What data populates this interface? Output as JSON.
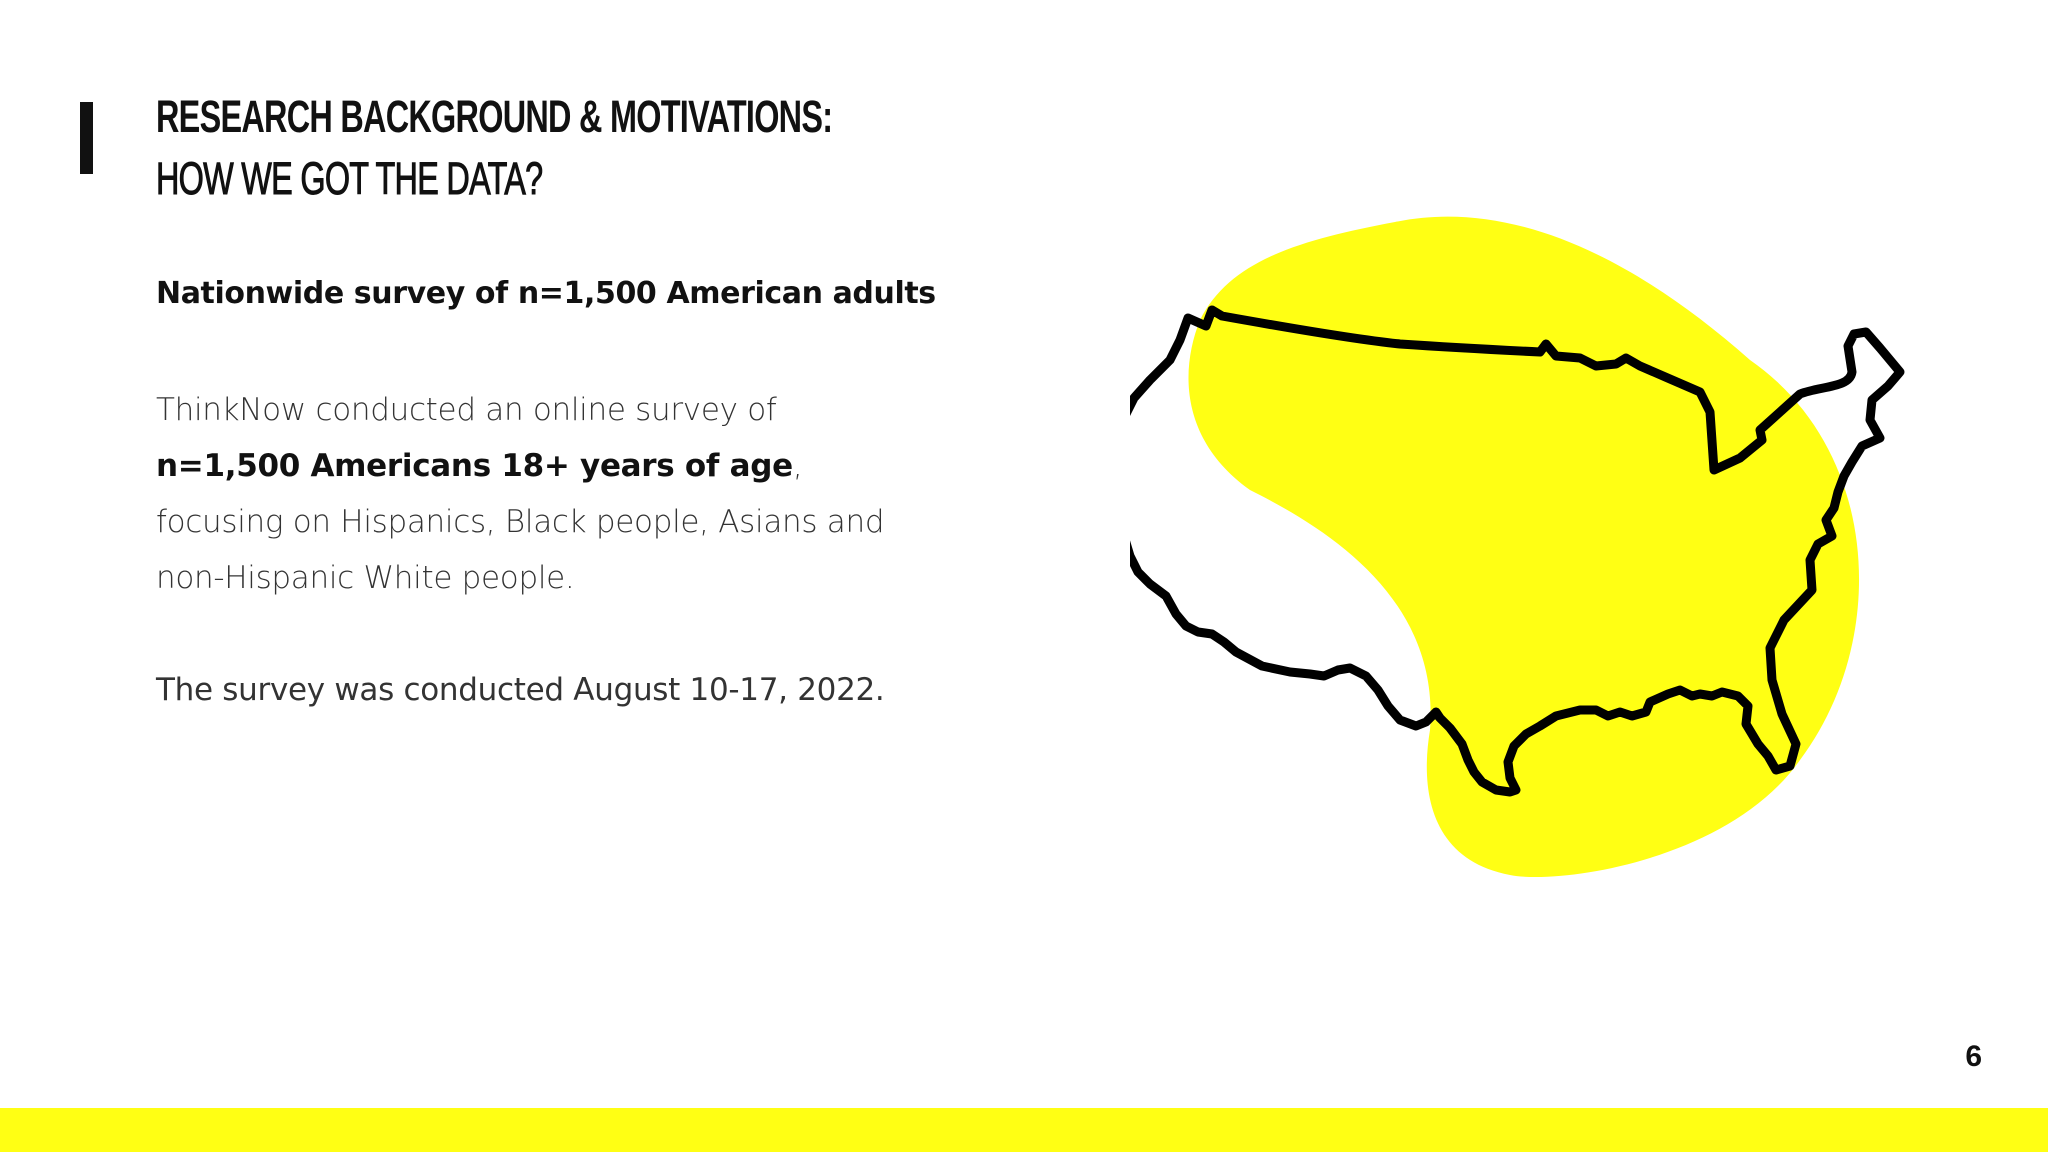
{
  "heading": {
    "line1": "RESEARCH BACKGROUND & MOTIVATIONS:",
    "line2": "HOW WE GOT THE DATA?"
  },
  "lead": "Nationwide survey of n=1,500 American adults",
  "body": {
    "intro": "ThinkNow conducted an online survey of ",
    "emphasis": "n=1,500 Americans 18+ years of age",
    "rest": ", focusing on Hispanics, Black people, Asians and non-Hispanic White people."
  },
  "dates": "The survey was conducted August 10-17, 2022.",
  "illustration": {
    "icon": "usa-map-outline-icon"
  },
  "page_number": "6",
  "colors": {
    "accent": "#ffff14",
    "ink": "#111111",
    "text": "#333333"
  }
}
